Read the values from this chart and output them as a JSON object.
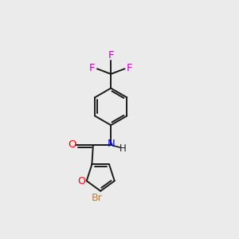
{
  "bg_color": "#ebebeb",
  "bond_color": "#1a1a1a",
  "O_color": "#ff0000",
  "N_color": "#0000ff",
  "Br_color": "#cc7722",
  "F_color": "#cc00cc",
  "C_color": "#1a1a1a",
  "line_width": 1.4,
  "figsize": [
    3.0,
    3.0
  ],
  "dpi": 100,
  "xlim": [
    0,
    10
  ],
  "ylim": [
    0,
    10
  ]
}
